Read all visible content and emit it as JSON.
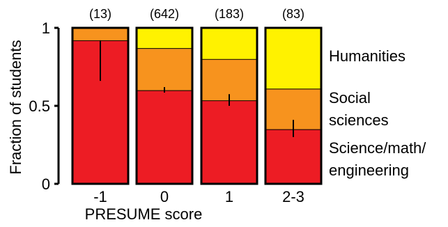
{
  "chart_data": {
    "type": "bar",
    "stacked": true,
    "normalized": true,
    "categories": [
      "-1",
      "0",
      "1",
      "2-3"
    ],
    "counts": [
      "(13)",
      "(642)",
      "(183)",
      "(83)"
    ],
    "series": [
      {
        "name": "Science/math/ engineering",
        "label_lines": [
          "Science/math/",
          "engineering"
        ],
        "color": "#ed1c24",
        "values": [
          0.92,
          0.6,
          0.535,
          0.35
        ],
        "error": [
          [
            0.66,
            0.92
          ],
          [
            0.585,
            0.62
          ],
          [
            0.5,
            0.575
          ],
          [
            0.3,
            0.41
          ]
        ]
      },
      {
        "name": "Social sciences",
        "label_lines": [
          "Social",
          "sciences"
        ],
        "color": "#f7931e",
        "values": [
          0.08,
          0.27,
          0.265,
          0.26
        ]
      },
      {
        "name": "Humanities",
        "label_lines": [
          "Humanities"
        ],
        "color": "#fff200",
        "values": [
          0.0,
          0.13,
          0.2,
          0.39
        ]
      }
    ],
    "xlabel": "PRESUME score",
    "ylabel": "Fraction of students",
    "ylim": [
      0,
      1
    ],
    "yticks": [
      {
        "value": 0,
        "label": "0"
      },
      {
        "value": 0.5,
        "label": "0.5"
      },
      {
        "value": 1,
        "label": "1"
      }
    ],
    "grid": false,
    "legend": "right, labels beside bar stack"
  }
}
